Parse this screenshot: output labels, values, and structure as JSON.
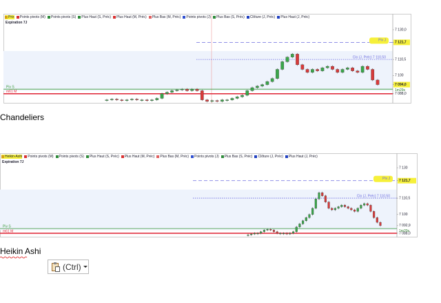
{
  "figures": [
    {
      "legend": [
        {
          "label": "Prix",
          "color": "#d4a017",
          "highlight": true
        },
        {
          "label": "Points pivots (M)",
          "color": "#d93030"
        },
        {
          "label": "Points pivots (S)",
          "color": "#2e8b3a"
        },
        {
          "label": "Plus Haut (S, Préc)",
          "color": "#2e8b3a"
        },
        {
          "label": "Plus Haut (M, Préc)",
          "color": "#d93030"
        },
        {
          "label": "Plus Bas (M, Préc)",
          "color": "#e06060"
        },
        {
          "label": "Points pivots (J)",
          "color": "#3050d0"
        },
        {
          "label": "Plus Bas (S, Préc)",
          "color": "#2e8b3a"
        },
        {
          "label": "Clôture (J, Préc)",
          "color": "#2040c0"
        },
        {
          "label": "Plus Haut (J, Préc)",
          "color": "#2040c0"
        }
      ],
      "expiration": "Expiration 7J",
      "ylim": [
        7082.5,
        7139.5
      ],
      "levels": [
        {
          "label": "Piv J",
          "value": 7121.7,
          "color": "#6a6adf",
          "style": "dashed",
          "label_side": "right"
        },
        {
          "label": "Clo (J, Préc) 7 110,50",
          "value": 7110.5,
          "color": "#6a6adf",
          "style": "dotted",
          "label_side": "right"
        },
        {
          "label": "Piv S",
          "value": 7091,
          "color": "#3a9a3a",
          "style": "solid",
          "label_side": "left"
        },
        {
          "label": "m61 M",
          "value": 7088,
          "color": "#e03040",
          "style": "thick",
          "label_side": "left"
        }
      ],
      "axis_labels": [
        {
          "value": 7130,
          "label": "7 130,0"
        },
        {
          "value": 7121.7,
          "label": "7 121,7",
          "highlight": true
        },
        {
          "value": 7110.5,
          "label": "7 110,5"
        },
        {
          "value": 7100,
          "label": "7 100"
        },
        {
          "value": 7094,
          "label": "7 094,0",
          "highlight": true
        },
        {
          "value": 7088,
          "label": "7 088,0"
        }
      ],
      "countdown": "1m29s",
      "closes": [
        7084,
        7084.5,
        7084,
        7083.5,
        7084,
        7084.5,
        7084,
        7084,
        7083.5,
        7084,
        7085,
        7088,
        7089,
        7090,
        7090.5,
        7091,
        7090,
        7091,
        7090,
        7084,
        7083,
        7083.5,
        7083,
        7084,
        7084,
        7085,
        7086,
        7087,
        7090,
        7092,
        7093,
        7094,
        7096,
        7098,
        7104,
        7109,
        7112,
        7114,
        7107,
        7104,
        7102,
        7104,
        7103,
        7105,
        7106,
        7104,
        7102,
        7104,
        7105,
        7103,
        7102,
        7106,
        7104,
        7097,
        7094
      ],
      "caption": "Chandeliers"
    },
    {
      "legend": [
        {
          "label": "Heikin-Ashi",
          "color": "#d4a017",
          "highlight": true
        },
        {
          "label": "Points pivots (M)",
          "color": "#d93030"
        },
        {
          "label": "Points pivots (S)",
          "color": "#2e8b3a"
        },
        {
          "label": "Plus Haut (S, Préc)",
          "color": "#2e8b3a"
        },
        {
          "label": "Plus Haut (M, Préc)",
          "color": "#d93030"
        },
        {
          "label": "Plus Bas (M, Préc)",
          "color": "#e06060"
        },
        {
          "label": "Points pivots (J)",
          "color": "#3050d0"
        },
        {
          "label": "Plus Bas (S, Préc)",
          "color": "#2e8b3a"
        },
        {
          "label": "Clôture (J, Préc)",
          "color": "#2040c0"
        },
        {
          "label": "Plus Haut (J, Préc)",
          "color": "#2040c0"
        }
      ],
      "expiration": "Expiration 7J",
      "ylim": [
        7086.2,
        7139.3
      ],
      "levels": [
        {
          "label": "Piv J",
          "value": 7121.7,
          "color": "#6a6adf",
          "style": "dashed",
          "label_side": "right"
        },
        {
          "label": "Clo (J, Préc) 7 110,50",
          "value": 7110.5,
          "color": "#6a6adf",
          "style": "dotted",
          "label_side": "right"
        },
        {
          "label": "Piv S",
          "value": 7091,
          "color": "#3a9a3a",
          "style": "solid",
          "label_side": "left"
        },
        {
          "label": "m61 M",
          "value": 7088,
          "color": "#e03040",
          "style": "thick",
          "label_side": "left"
        }
      ],
      "axis_labels": [
        {
          "value": 7130,
          "label": "7 130"
        },
        {
          "value": 7121.7,
          "label": "7 121,7",
          "highlight": true
        },
        {
          "value": 7110.5,
          "label": "7 110,5"
        },
        {
          "value": 7100,
          "label": "7 100"
        },
        {
          "value": 7092.9,
          "label": "7 092,9"
        },
        {
          "value": 7088,
          "label": "7 088,0"
        }
      ],
      "countdown": "1m20s",
      "closes": [
        7087,
        7087.5,
        7088,
        7088,
        7089,
        7090,
        7090.5,
        7090,
        7089,
        7088,
        7088,
        7088,
        7087.5,
        7088,
        7089,
        7092,
        7094,
        7096,
        7098,
        7100,
        7104,
        7110,
        7114,
        7112,
        7108,
        7104,
        7103,
        7104,
        7105,
        7106,
        7105,
        7104,
        7103,
        7102,
        7104,
        7106,
        7107,
        7106,
        7102,
        7098,
        7095,
        7092.9
      ],
      "caption": "Heikin Ashi"
    }
  ],
  "paste_button": {
    "label": "(Ctrl)"
  }
}
